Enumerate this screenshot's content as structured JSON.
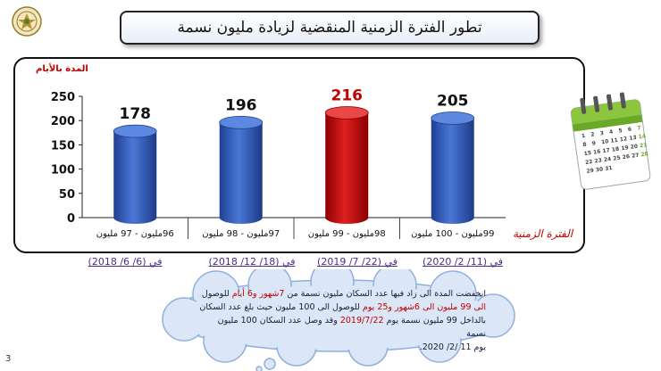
{
  "title": "تطور الفترة الزمنية   المنقضية لزيادة مليون نسمة",
  "chart_data": {
    "type": "bar",
    "categories": [
      "96مليون - 97 مليون",
      "97مليون - 98 مليون",
      "98مليون - 99 مليون",
      "99مليون - 100 مليون"
    ],
    "values": [
      178,
      196,
      216,
      205
    ],
    "data_labels": [
      "178",
      "196",
      "216",
      "205"
    ],
    "colors": [
      "#3a63c4",
      "#3a63c4",
      "#c00000",
      "#3a63c4"
    ],
    "label_colors": [
      "#111111",
      "#111111",
      "#c00000",
      "#111111"
    ],
    "ylabel": "المدة بالأيام",
    "xlabel": "الفترة الزمنية",
    "yticks": [
      "0",
      "50",
      "100",
      "150",
      "200",
      "250"
    ],
    "ylim": [
      0,
      250
    ],
    "grid": false
  },
  "dates": [
    "في (6/ 6/ 2018)",
    "في (18/ 12/ 2018)",
    "في (22/ 7/ 2019)",
    "في (11/ 2/ 2020)"
  ],
  "cloud": {
    "line1_a": "انخفضت المدة الى زاد فيها عدد السكان مليون نسمة من ",
    "line1_hl": "7شهور و6 أيام",
    "line1_b": " للوصول",
    "line2_hl1": "الى 99 مليون الى 6شهور و25 يوم",
    "line2_a": " للوصول الى 100 مليون حيث بلغ عدد السكان",
    "line3_a": "بالداخل 99 مليون نسمة يوم ",
    "line3_hl": "2019/7/22",
    "line3_b": " وقد وصل  عدد السكان 100 مليون نسمة",
    "line4_hl": "يوم  11 /2/ 2020."
  },
  "calendar_numbers": [
    "1",
    "2",
    "3",
    "4",
    "5",
    "6",
    "7",
    "8",
    "9",
    "10",
    "11",
    "12",
    "13",
    "14",
    "15",
    "16",
    "17",
    "18",
    "19",
    "20",
    "21",
    "22",
    "23",
    "24",
    "25",
    "26",
    "27",
    "28",
    "29",
    "30",
    "31"
  ],
  "page_number": "3",
  "icons": {
    "emblem": "military-emblem-icon",
    "calendar": "calendar-icon"
  }
}
